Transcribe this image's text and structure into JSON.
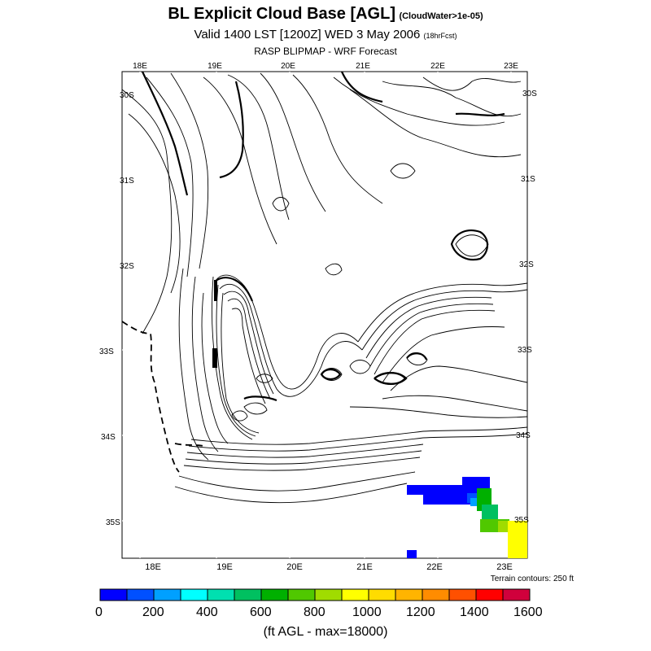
{
  "header": {
    "title": "BL Explicit Cloud Base [AGL]",
    "title_note": "(CloudWater>1e-05)",
    "valid": "Valid 1400 LST [1200Z] WED 3 May 2006",
    "forecast_note": "(18hrFcst)",
    "subtitle": "RASP BLIPMAP - WRF Forecast"
  },
  "map": {
    "top_lon_labels": [
      "18E",
      "19E",
      "20E",
      "21E",
      "22E",
      "23E"
    ],
    "bottom_lon_labels": [
      "18E",
      "19E",
      "20E",
      "21E",
      "22E",
      "23E"
    ],
    "lat_labels": [
      "30S",
      "31S",
      "32S",
      "33S",
      "34S",
      "35S"
    ],
    "terrain_note": "Terrain contours: 250 ft"
  },
  "colorbar": {
    "colors": [
      "#0000ff",
      "#0050ff",
      "#00a0ff",
      "#00ffff",
      "#00e0b0",
      "#00c060",
      "#00b000",
      "#50c800",
      "#a0dc00",
      "#ffff00",
      "#ffdc00",
      "#ffb400",
      "#ff8c00",
      "#ff5000",
      "#ff0000",
      "#d0003c"
    ],
    "tick_labels": [
      "0",
      "200",
      "400",
      "600",
      "800",
      "1000",
      "1200",
      "1400",
      "1600"
    ],
    "units_label": "(ft AGL - max=18000)"
  }
}
